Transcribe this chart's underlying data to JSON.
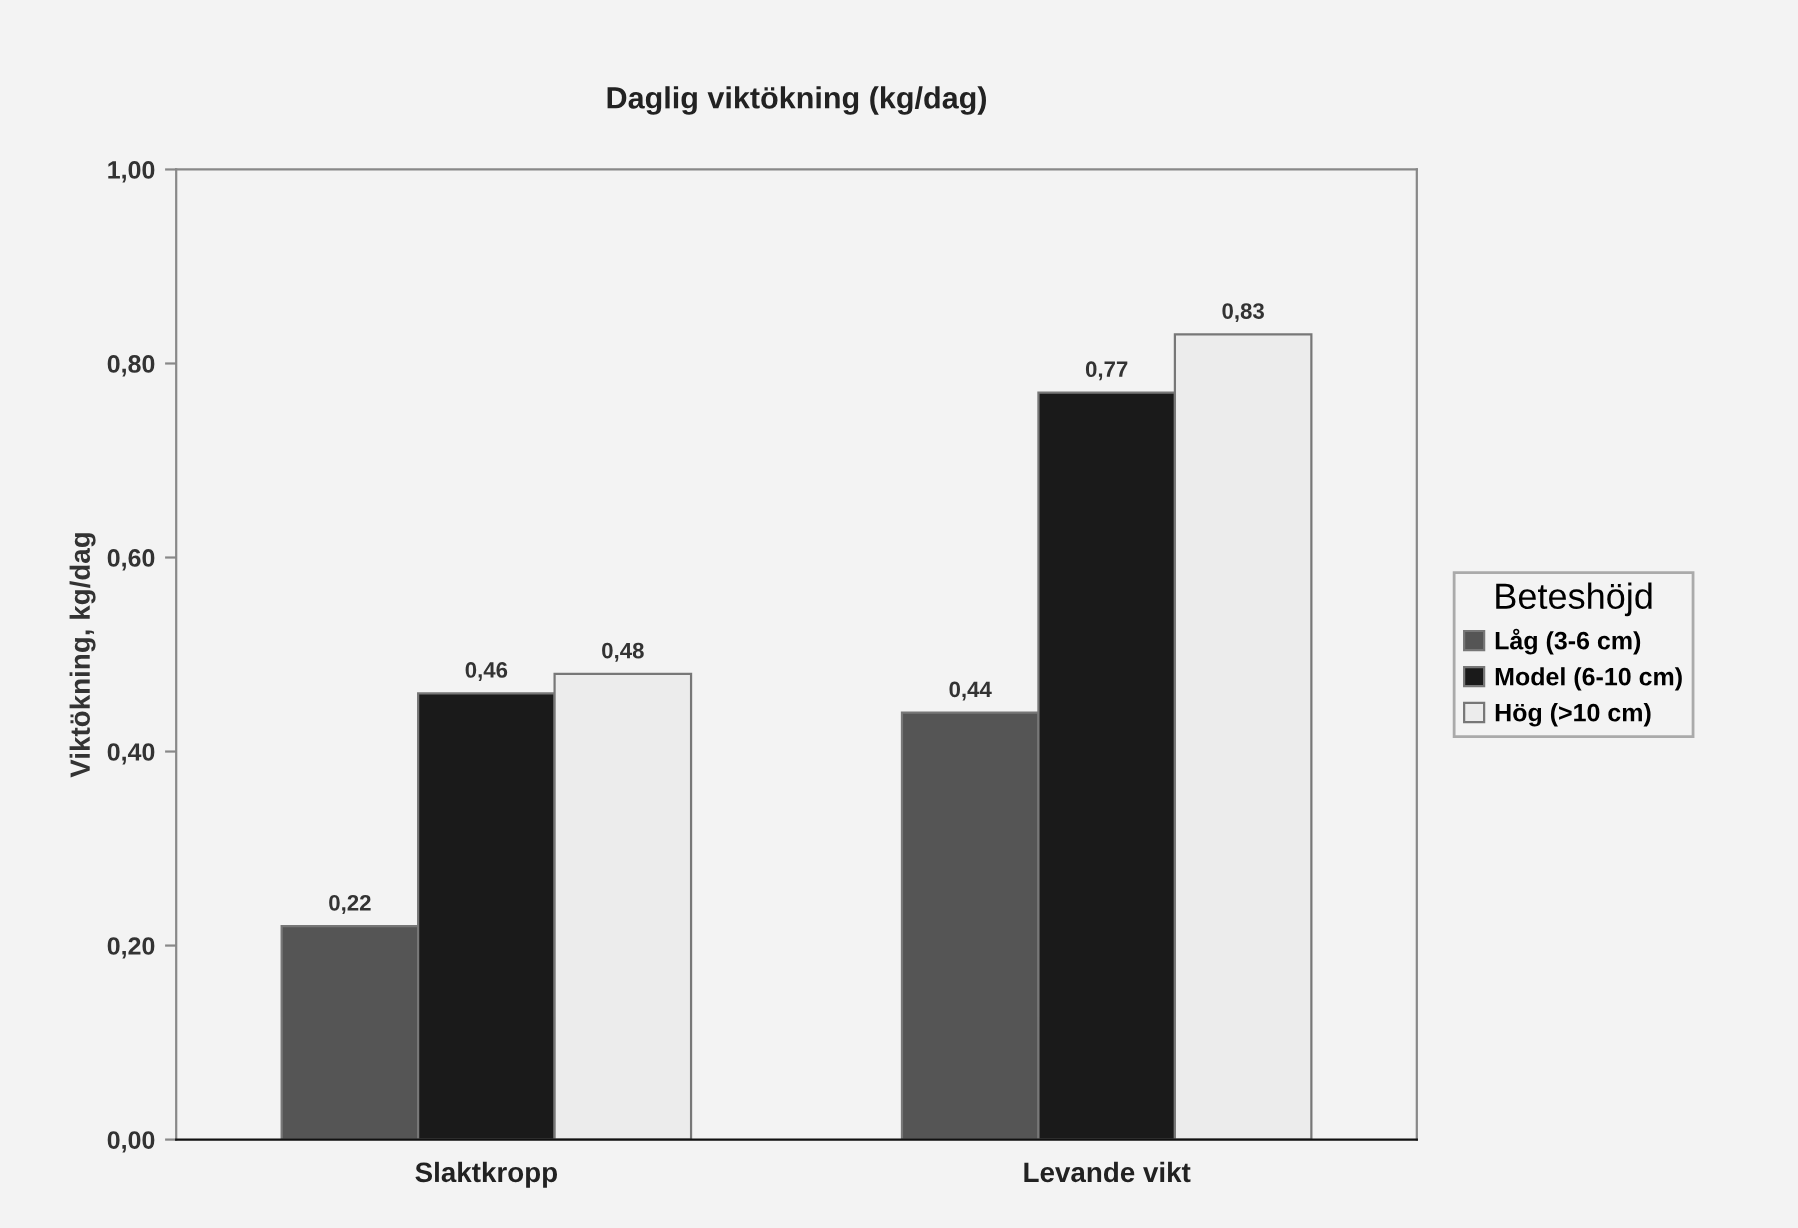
{
  "chart_data": {
    "type": "bar",
    "title": "Daglig viktökning (kg/dag)",
    "ylabel": "Viktökning, kg/dag",
    "legend_title": "Beteshöjd",
    "categories": [
      "Slaktkropp",
      "Levande vikt"
    ],
    "series": [
      {
        "name": "Låg (3-6 cm)",
        "color": "#555555",
        "values": [
          0.22,
          0.44
        ],
        "value_labels": [
          "0,22",
          "0,44"
        ]
      },
      {
        "name": "Model (6-10 cm)",
        "color": "#1a1a1a",
        "values": [
          0.46,
          0.77
        ],
        "value_labels": [
          "0,46",
          "0,77"
        ]
      },
      {
        "name": "Hög (>10 cm)",
        "color": "#ececec",
        "values": [
          0.48,
          0.83
        ],
        "value_labels": [
          "0,48",
          "0,83"
        ]
      }
    ],
    "ylim": [
      0,
      1
    ],
    "yticks": [
      {
        "value": 0,
        "label": "0,00"
      },
      {
        "value": 0.2,
        "label": "0,20"
      },
      {
        "value": 0.4,
        "label": "0,40"
      },
      {
        "value": 0.6,
        "label": "0,60"
      },
      {
        "value": 0.8,
        "label": "0,80"
      },
      {
        "value": 1,
        "label": "1,00"
      }
    ],
    "grid": false,
    "legend": "right"
  }
}
